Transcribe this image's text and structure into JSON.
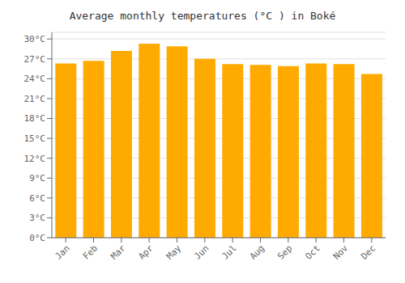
{
  "chart_data": {
    "type": "bar",
    "title": "Average monthly temperatures (°C ) in Boké",
    "categories": [
      "Jan",
      "Feb",
      "Mar",
      "Apr",
      "May",
      "Jun",
      "Jul",
      "Aug",
      "Sep",
      "Oct",
      "Nov",
      "Dec"
    ],
    "values": [
      26.3,
      26.7,
      28.2,
      29.3,
      28.9,
      27.0,
      26.2,
      26.1,
      25.9,
      26.3,
      26.2,
      24.7
    ],
    "color": "#FFAA00",
    "ylim": [
      0,
      31
    ],
    "yticks": [
      {
        "value": 0,
        "label": "0°C"
      },
      {
        "value": 3,
        "label": "3°C"
      },
      {
        "value": 6,
        "label": "6°C"
      },
      {
        "value": 9,
        "label": "9°C"
      },
      {
        "value": 12,
        "label": "12°C"
      },
      {
        "value": 15,
        "label": "15°C"
      },
      {
        "value": 18,
        "label": "18°C"
      },
      {
        "value": 21,
        "label": "21°C"
      },
      {
        "value": 24,
        "label": "24°C"
      },
      {
        "value": 27,
        "label": "27°C"
      },
      {
        "value": 30,
        "label": "30°C"
      }
    ],
    "grid": true
  }
}
